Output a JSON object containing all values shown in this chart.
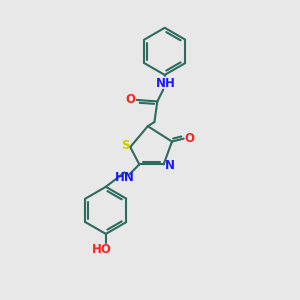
{
  "bg_color": "#e8e8e8",
  "bond_color": "#2d6b5e",
  "n_color": "#1a1aff",
  "o_color": "#ff2020",
  "s_color": "#cccc00",
  "figsize": [
    3.0,
    3.0
  ],
  "dpi": 100,
  "lw": 1.5,
  "fs": 8.5,
  "xlim": [
    0,
    10
  ],
  "ylim": [
    0,
    10
  ]
}
